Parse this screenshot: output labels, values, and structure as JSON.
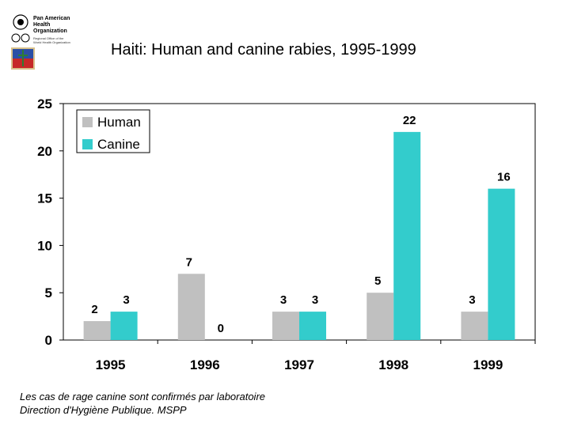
{
  "logo": {
    "org_lines": [
      "Pan American",
      "Health",
      "Organization"
    ],
    "sub_lines": [
      "Regional Office of the",
      "World Health Organization"
    ]
  },
  "chart_data": {
    "type": "bar",
    "title": "Haiti: Human and canine rabies, 1995-1999",
    "categories": [
      "1995",
      "1996",
      "1997",
      "1998",
      "1999"
    ],
    "series": [
      {
        "name": "Human",
        "color": "#c0c0c0",
        "values": [
          2,
          7,
          3,
          5,
          3
        ]
      },
      {
        "name": "Canine",
        "color": "#33cccc",
        "values": [
          3,
          0,
          3,
          22,
          16
        ]
      }
    ],
    "ylim": [
      0,
      25
    ],
    "yticks": [
      0,
      5,
      10,
      15,
      20,
      25
    ],
    "xlabel": "",
    "ylabel": "",
    "legend": "top-left",
    "grid": false
  },
  "footer": {
    "line1": "Les cas de rage canine sont confirmés par laboratoire",
    "line2": "Direction d'Hygiène Publique. MSPP"
  }
}
